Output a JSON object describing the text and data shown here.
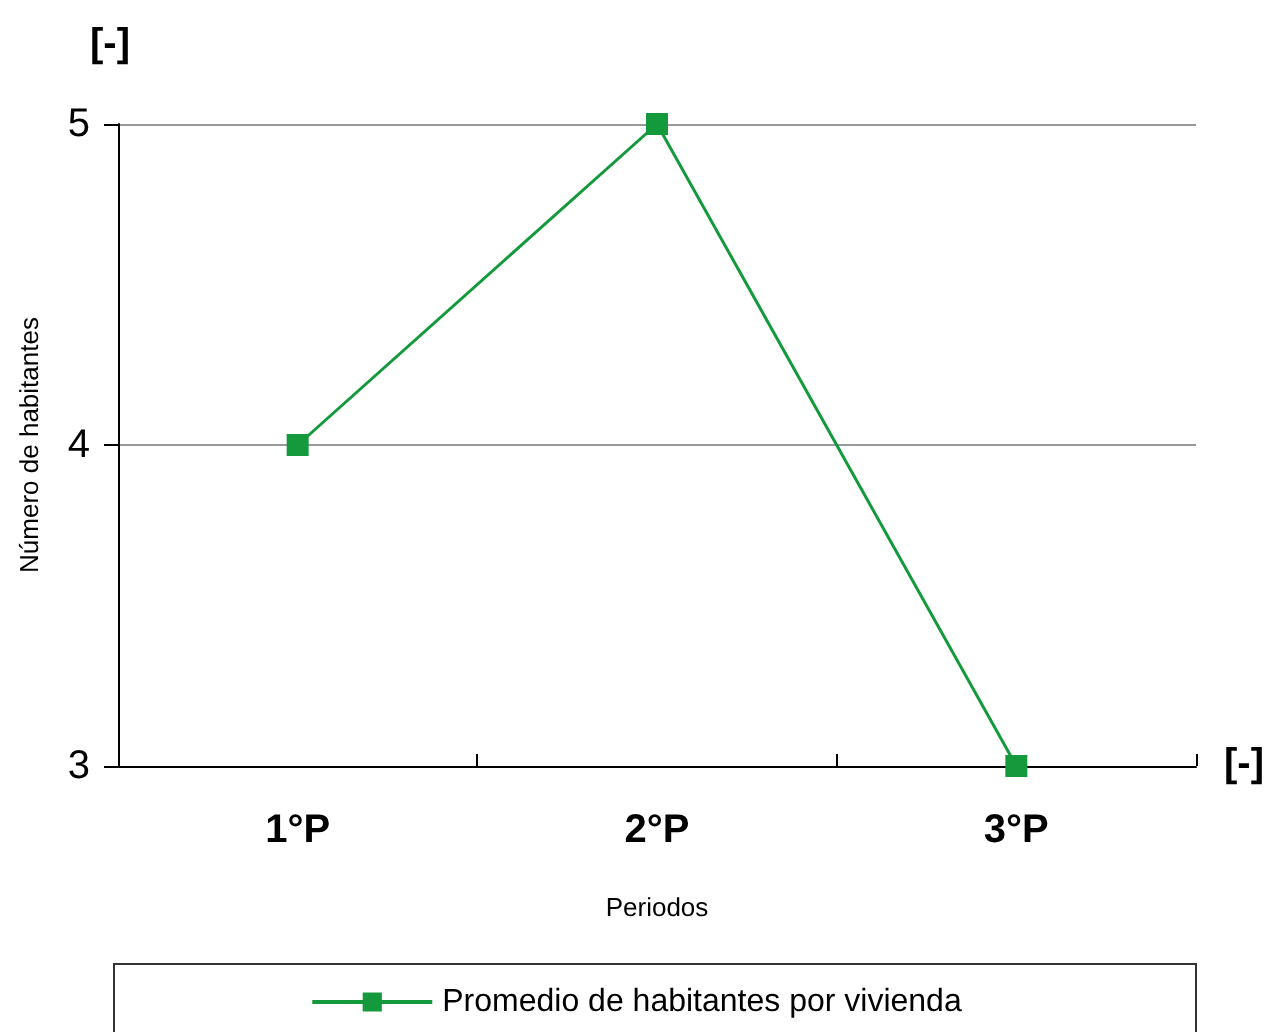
{
  "chart_data": {
    "type": "line",
    "xlabel": "Periodos",
    "ylabel": "Número de habitantes",
    "categories": [
      "1°P",
      "2°P",
      "3°P"
    ],
    "series": [
      {
        "name": "Promedio de habitantes por vivienda",
        "color": "#14993c",
        "values": [
          4,
          5,
          3
        ]
      }
    ],
    "ylim": [
      3,
      5
    ],
    "yticks": [
      3,
      4,
      5
    ],
    "grid": "y",
    "legend": "bottom",
    "marker": "square",
    "line_style": "solid",
    "annotations": [
      "[-]",
      "[-]"
    ]
  }
}
